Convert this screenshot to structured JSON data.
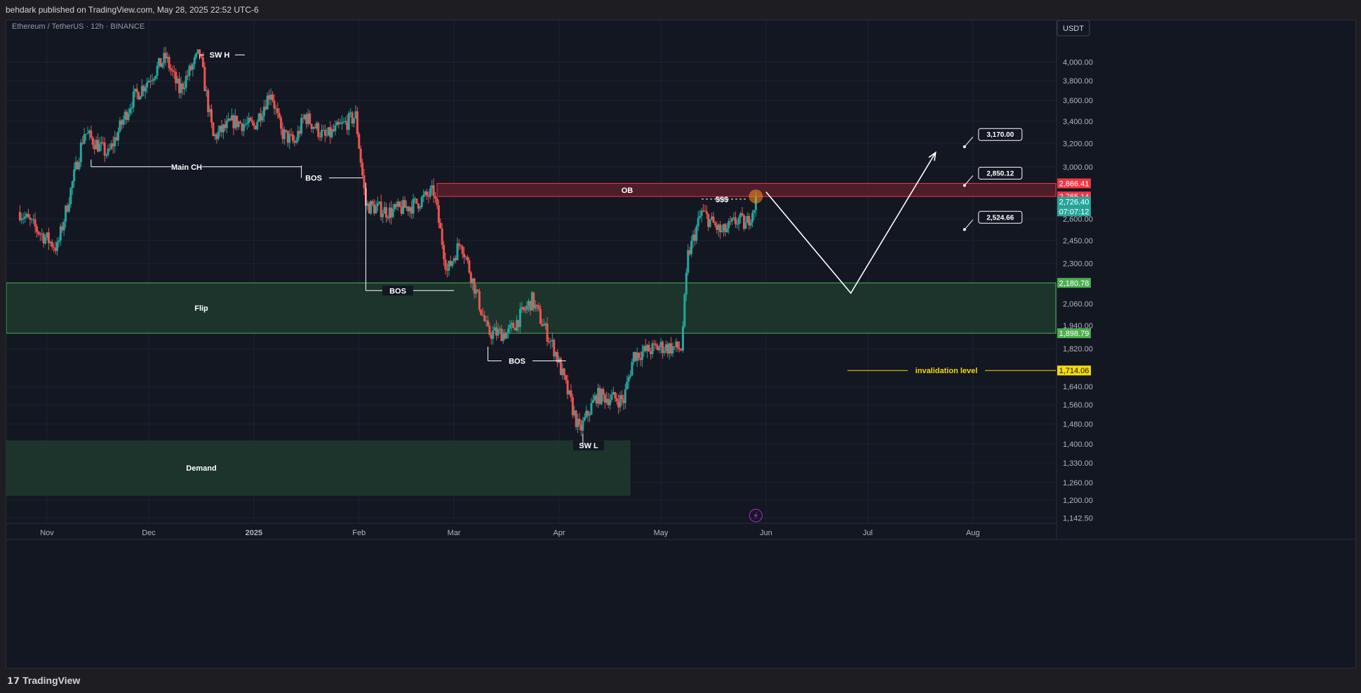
{
  "header": {
    "published_text": "behdark published on TradingView.com, May 28, 2025 22:52 UTC-6"
  },
  "footer": {
    "brand_mark": "𝟭𝟳",
    "brand": "TradingView"
  },
  "chart_data": {
    "type": "candlestick",
    "title": "Ethereum / TetherUS · 12h · BINANCE",
    "currency_button": "USDT",
    "ylabel": "USDT",
    "y_scale": "log",
    "ylim": [
      1120,
      4300
    ],
    "y_ticks": [
      "4,000.00",
      "3,800.00",
      "3,600.00",
      "3,400.00",
      "3,200.00",
      "3,000.00",
      "2,600.00",
      "2,450.00",
      "2,300.00",
      "2,060.00",
      "1,940.00",
      "1,820.00",
      "1,640.00",
      "1,560.00",
      "1,480.00",
      "1,400.00",
      "1,330.00",
      "1,260.00",
      "1,200.00",
      "1,142.50"
    ],
    "x_ticks": [
      "Nov",
      "Dec",
      "2025",
      "Feb",
      "Mar",
      "Apr",
      "May",
      "Jun",
      "Jul",
      "Aug"
    ],
    "colors": {
      "up": "#26a69a",
      "down": "#ef5350",
      "background": "#131722",
      "zone_green": "#1f3a2d",
      "zone_red": "#5a1f2a",
      "invalidation": "#f5d90a"
    },
    "price_path": [
      [
        "Oct 24",
        2650
      ],
      [
        "Oct 30",
        2500
      ],
      [
        "Nov 4",
        2400
      ],
      [
        "Nov 12",
        3300
      ],
      [
        "Nov 19",
        3100
      ],
      [
        "Nov 26",
        3600
      ],
      [
        "Dec 6",
        4050
      ],
      [
        "Dec 10",
        3700
      ],
      [
        "Dec 16",
        4100
      ],
      [
        "Dec 20",
        3250
      ],
      [
        "Dec 26",
        3400
      ],
      [
        "Jan 1",
        3350
      ],
      [
        "Jan 6",
        3700
      ],
      [
        "Jan 9",
        3300
      ],
      [
        "Jan 13",
        3200
      ],
      [
        "Jan 16",
        3450
      ],
      [
        "Jan 22",
        3250
      ],
      [
        "Jan 31",
        3450
      ],
      [
        "Feb 3",
        2700
      ],
      [
        "Feb 10",
        2650
      ],
      [
        "Feb 17",
        2700
      ],
      [
        "Feb 23",
        2800
      ],
      [
        "Feb 27",
        2250
      ],
      [
        "Mar 3",
        2450
      ],
      [
        "Mar 11",
        1900
      ],
      [
        "Mar 17",
        1900
      ],
      [
        "Mar 24",
        2080
      ],
      [
        "Mar 31",
        1800
      ],
      [
        "Apr 7",
        1450
      ],
      [
        "Apr 12",
        1600
      ],
      [
        "Apr 20",
        1580
      ],
      [
        "Apr 23",
        1790
      ],
      [
        "May 1",
        1830
      ],
      [
        "May 7",
        1820
      ],
      [
        "May 9",
        2350
      ],
      [
        "May 13",
        2650
      ],
      [
        "May 19",
        2500
      ],
      [
        "May 24",
        2600
      ],
      [
        "May 26",
        2550
      ],
      [
        "May 29",
        2726
      ]
    ],
    "last_price": "2,726.40",
    "countdown": "07:07:12",
    "zones": [
      {
        "label": "OB",
        "top": 2866.41,
        "bottom": 2765.14,
        "color": "red"
      },
      {
        "label": "Flip",
        "top": 2180.78,
        "bottom": 1898.79,
        "color": "green"
      },
      {
        "label": "Demand",
        "top": 1415,
        "bottom": 1215,
        "color": "green"
      }
    ],
    "price_labels": [
      {
        "text": "2,866.41",
        "color": "#f23645"
      },
      {
        "text": "2,765.14",
        "color": "#f23645"
      },
      {
        "text": "2,726.40",
        "color": "#26a69a"
      },
      {
        "text": "07:07:12",
        "color": "#26a69a"
      },
      {
        "text": "2,180.78",
        "color": "#4caf50"
      },
      {
        "text": "1,898.79",
        "color": "#4caf50"
      },
      {
        "text": "1,714.06",
        "color": "#f5d90a"
      }
    ],
    "annotations": [
      "SW H",
      "Main CH",
      "BOS",
      "BOS",
      "BOS",
      "SW L",
      "$$$",
      "invalidation level"
    ],
    "targets": [
      "3,170.00",
      "2,850.12",
      "2,524.66"
    ],
    "projection_path": [
      [
        "Jun 1",
        2800
      ],
      [
        "Jun 26",
        2120
      ],
      [
        "Jul 21",
        3120
      ]
    ],
    "invalidation_level": 1714.06
  }
}
